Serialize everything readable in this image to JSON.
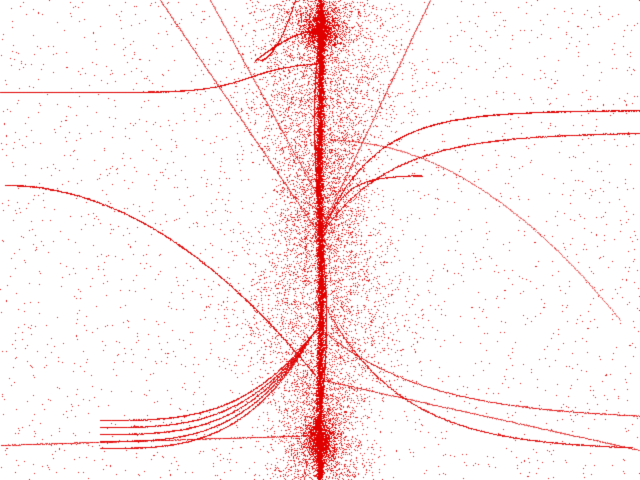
{
  "image": {
    "description_type": "dense-dot-plot",
    "background_color": "#ffffff",
    "dot_color": "#e00000",
    "palette": [
      "#e00000",
      "#ff0000",
      "#cc0000"
    ]
  }
}
